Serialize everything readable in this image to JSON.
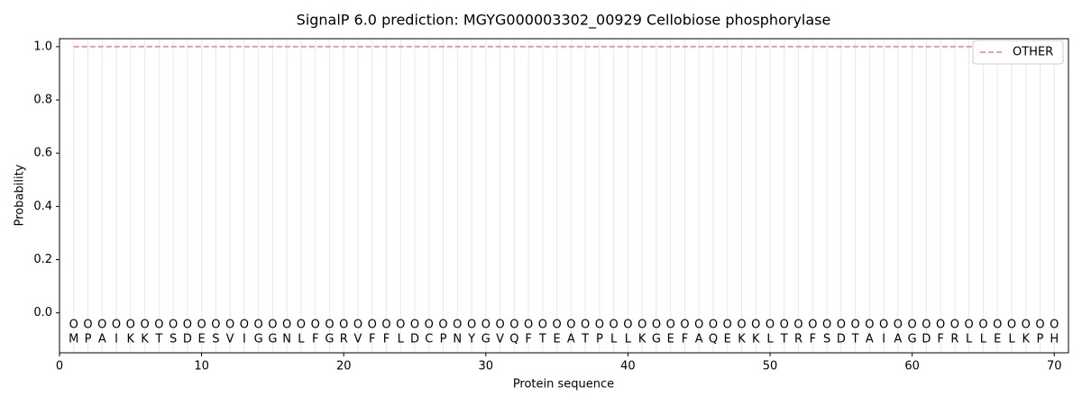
{
  "chart_data": {
    "type": "line",
    "title": "SignalP 6.0 prediction: MGYG000003302_00929 Cellobiose phosphorylase",
    "xlabel": "Protein sequence",
    "ylabel": "Probability",
    "x": [
      1,
      2,
      3,
      4,
      5,
      6,
      7,
      8,
      9,
      10,
      11,
      12,
      13,
      14,
      15,
      16,
      17,
      18,
      19,
      20,
      21,
      22,
      23,
      24,
      25,
      26,
      27,
      28,
      29,
      30,
      31,
      32,
      33,
      34,
      35,
      36,
      37,
      38,
      39,
      40,
      41,
      42,
      43,
      44,
      45,
      46,
      47,
      48,
      49,
      50,
      51,
      52,
      53,
      54,
      55,
      56,
      57,
      58,
      59,
      60,
      61,
      62,
      63,
      64,
      65,
      66,
      67,
      68,
      69,
      70
    ],
    "residues": [
      "M",
      "P",
      "A",
      "I",
      "K",
      "K",
      "T",
      "S",
      "D",
      "E",
      "S",
      "V",
      "I",
      "G",
      "G",
      "N",
      "L",
      "F",
      "G",
      "R",
      "V",
      "F",
      "F",
      "L",
      "D",
      "C",
      "P",
      "N",
      "Y",
      "G",
      "V",
      "Q",
      "F",
      "T",
      "E",
      "A",
      "T",
      "P",
      "L",
      "L",
      "K",
      "G",
      "E",
      "F",
      "A",
      "Q",
      "E",
      "K",
      "K",
      "L",
      "T",
      "R",
      "F",
      "S",
      "D",
      "T",
      "A",
      "I",
      "A",
      "G",
      "D",
      "F",
      "R",
      "L",
      "L",
      "E",
      "L",
      "K",
      "P",
      "H"
    ],
    "residue_labels": [
      "O",
      "O",
      "O",
      "O",
      "O",
      "O",
      "O",
      "O",
      "O",
      "O",
      "O",
      "O",
      "O",
      "O",
      "O",
      "O",
      "O",
      "O",
      "O",
      "O",
      "O",
      "O",
      "O",
      "O",
      "O",
      "O",
      "O",
      "O",
      "O",
      "O",
      "O",
      "O",
      "O",
      "O",
      "O",
      "O",
      "O",
      "O",
      "O",
      "O",
      "O",
      "O",
      "O",
      "O",
      "O",
      "O",
      "O",
      "O",
      "O",
      "O",
      "O",
      "O",
      "O",
      "O",
      "O",
      "O",
      "O",
      "O",
      "O",
      "O",
      "O",
      "O",
      "O",
      "O",
      "O",
      "O",
      "O",
      "O",
      "O",
      "O"
    ],
    "series": [
      {
        "name": "OTHER",
        "color": "#f08080",
        "dashed": true,
        "values": [
          1,
          1,
          1,
          1,
          1,
          1,
          1,
          1,
          1,
          1,
          1,
          1,
          1,
          1,
          1,
          1,
          1,
          1,
          1,
          1,
          1,
          1,
          1,
          1,
          1,
          1,
          1,
          1,
          1,
          1,
          1,
          1,
          1,
          1,
          1,
          1,
          1,
          1,
          1,
          1,
          1,
          1,
          1,
          1,
          1,
          1,
          1,
          1,
          1,
          1,
          1,
          1,
          1,
          1,
          1,
          1,
          1,
          1,
          1,
          1,
          1,
          1,
          1,
          1,
          1,
          1,
          1,
          1,
          1,
          1
        ]
      }
    ],
    "xlim": [
      0,
      71
    ],
    "ylim": [
      -0.15,
      1.03
    ],
    "xticks": [
      0,
      10,
      20,
      30,
      40,
      50,
      60,
      70
    ],
    "yticks": [
      {
        "value": 0,
        "label": "0.0"
      },
      {
        "value": 0.2,
        "label": "0.2"
      },
      {
        "value": 0.4,
        "label": "0.4"
      },
      {
        "value": 0.6,
        "label": "0.6"
      },
      {
        "value": 0.8,
        "label": "0.8"
      },
      {
        "value": 1,
        "label": "1.0"
      }
    ],
    "legend": "upper right"
  }
}
